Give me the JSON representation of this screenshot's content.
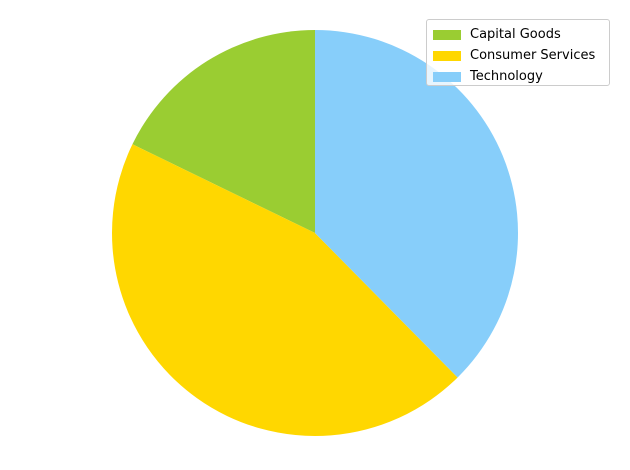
{
  "chart_data": {
    "type": "pie",
    "title": "",
    "start_angle_deg": 90,
    "direction": "counterclockwise",
    "legend_position": "top-right",
    "slices": [
      {
        "label": "Capital Goods",
        "value": 17.8,
        "color": "#9ACD32"
      },
      {
        "label": "Consumer Services",
        "value": 44.6,
        "color": "#FFD700"
      },
      {
        "label": "Technology",
        "value": 37.6,
        "color": "#87CEFA"
      }
    ]
  }
}
